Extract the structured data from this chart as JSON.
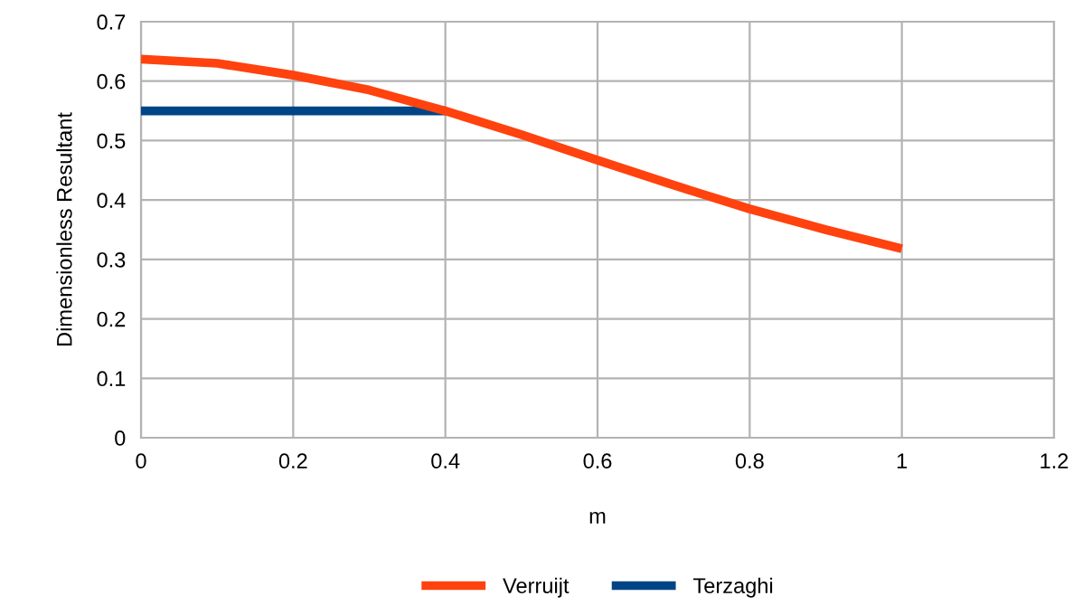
{
  "chart_data": {
    "type": "line",
    "xlabel": "m",
    "ylabel": "Dimensionless Resultant",
    "series": [
      {
        "name": "Verruijt",
        "color": "#ff420e",
        "x": [
          0,
          0.1,
          0.2,
          0.3,
          0.4,
          0.5,
          0.6,
          0.7,
          0.8,
          0.9,
          1
        ],
        "values": [
          0.637,
          0.63,
          0.61,
          0.585,
          0.55,
          0.51,
          0.467,
          0.425,
          0.385,
          0.35,
          0.318
        ]
      },
      {
        "name": "Terzaghi",
        "color": "#004586",
        "x": [
          0,
          0.4
        ],
        "values": [
          0.55,
          0.55
        ]
      }
    ],
    "xlim": [
      0,
      1.2
    ],
    "xticks": [
      0,
      0.2,
      0.4,
      0.6,
      0.8,
      1,
      1.2
    ],
    "ylim": [
      0,
      0.7
    ],
    "yticks": [
      0,
      0.1,
      0.2,
      0.3,
      0.4,
      0.5,
      0.6,
      0.7
    ],
    "grid": true,
    "legend": "bottom",
    "marker": "none",
    "line_style": "solid"
  }
}
